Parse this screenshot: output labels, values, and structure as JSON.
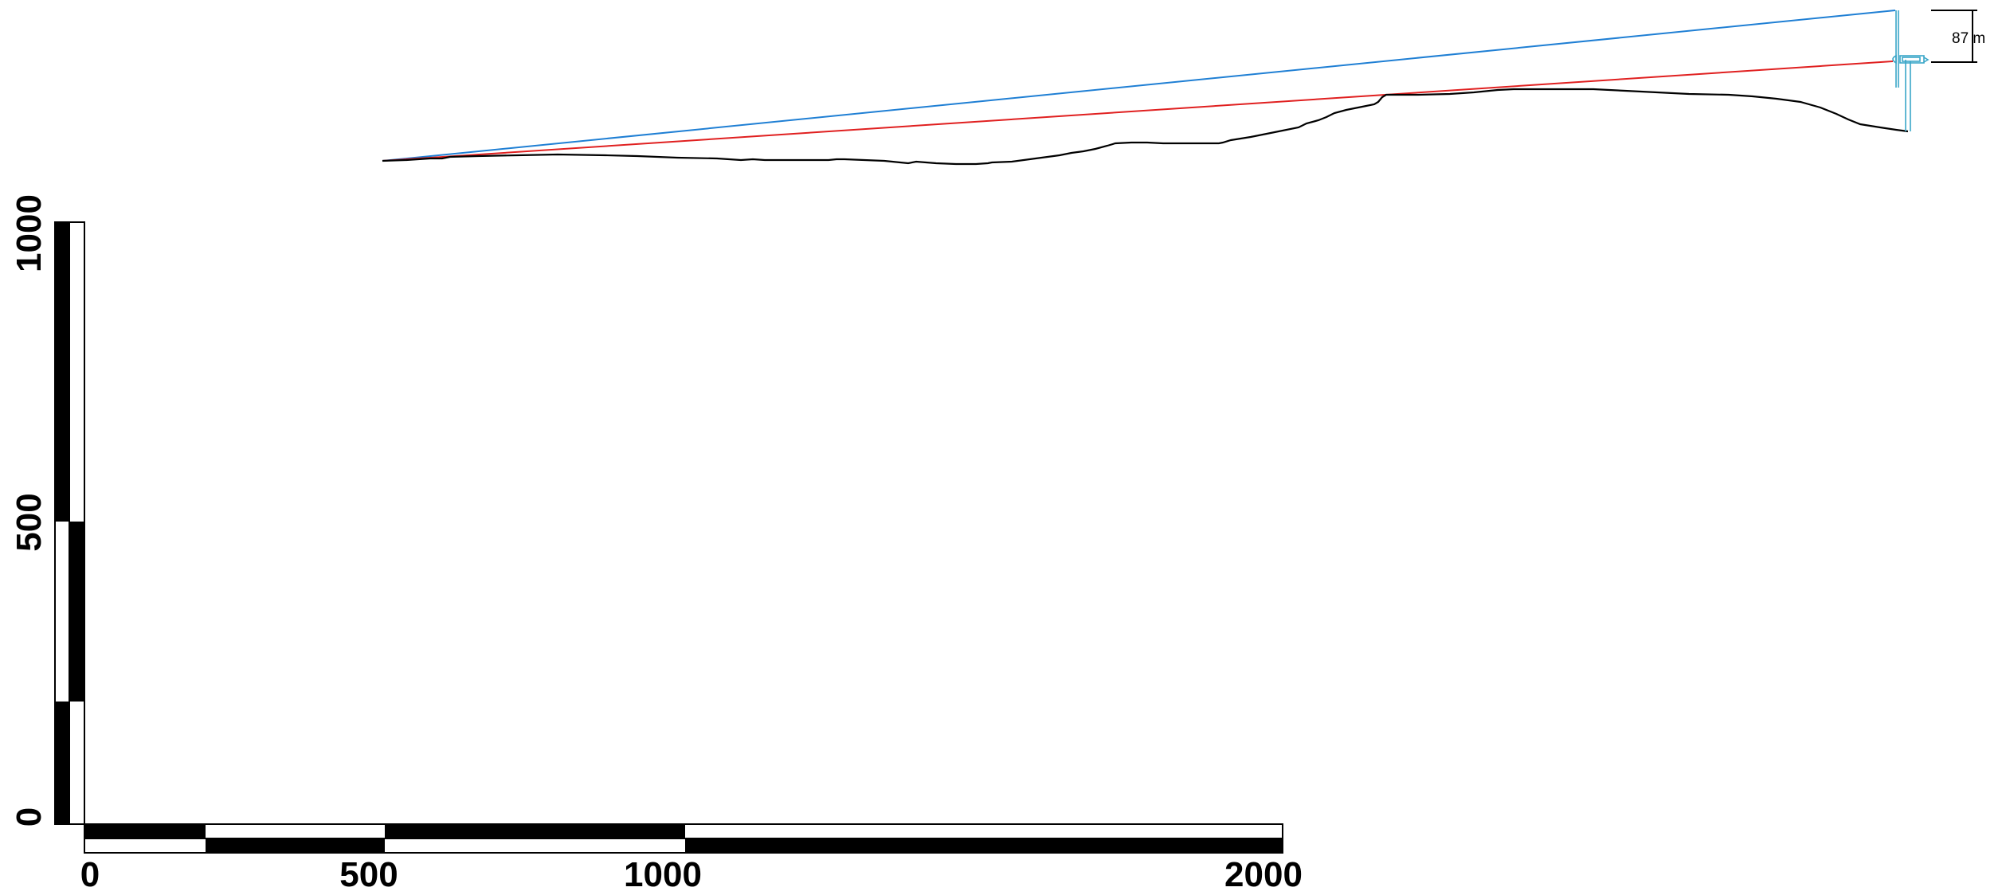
{
  "colors": {
    "terrain": "#000000",
    "sightline_top": "#1f7fd4",
    "sightline_hub": "#e02020",
    "turbine": "#3aa6c8"
  },
  "dimension": {
    "label": "87 m"
  },
  "scale_x": {
    "labels": [
      "0",
      "500",
      "1000",
      "2000"
    ]
  },
  "scale_y": {
    "labels": [
      "0",
      "500",
      "1000"
    ]
  }
}
